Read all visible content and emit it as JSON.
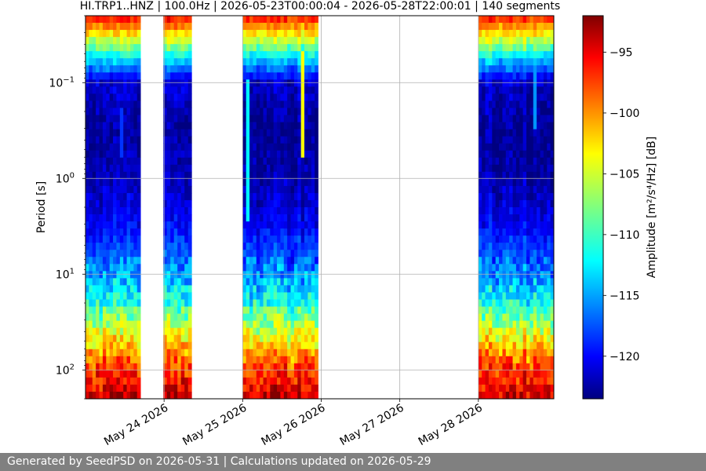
{
  "chart_data": {
    "type": "heatmap",
    "title": "HI.TRP1..HNZ | 100.0Hz | 2026-05-23T00:00:04 - 2026-05-28T22:00:01 | 140 segments",
    "ylabel": "Period [s]",
    "colorbar_label": "Amplitude [m²/s⁴/Hz] [dB]",
    "colorbar_ticks": [
      "−95",
      "−100",
      "−105",
      "−110",
      "−115",
      "−120"
    ],
    "colorbar_tick_values": [
      -95,
      -100,
      -105,
      -110,
      -115,
      -120
    ],
    "color_range": [
      -123.5,
      -92
    ],
    "colormap": "jet",
    "x_tick_labels": [
      "May 24 2026",
      "May 25 2026",
      "May 26 2026",
      "May 27 2026",
      "May 28 2026"
    ],
    "x_tick_days": [
      24,
      25,
      26,
      27,
      28
    ],
    "x_range_days": [
      23.0,
      28.96
    ],
    "y_scale": "log",
    "y_inverted": true,
    "y_range_seconds": [
      0.02,
      200
    ],
    "y_tick_labels": [
      {
        "base": "10",
        "exp": "−1",
        "value": 0.1
      },
      {
        "base": "10",
        "exp": "0",
        "value": 1
      },
      {
        "base": "10",
        "exp": "1",
        "value": 10
      },
      {
        "base": "10",
        "exp": "2",
        "value": 100
      }
    ],
    "grid": true,
    "data_segments_days": [
      [
        23.0,
        23.7
      ],
      [
        23.99,
        24.35
      ],
      [
        25.0,
        25.96
      ],
      [
        28.0,
        28.96
      ]
    ],
    "profile_period_s": [
      0.02,
      0.05,
      0.1,
      0.3,
      1,
      3,
      10,
      20,
      40,
      80,
      200
    ],
    "profile_amplitude_db": [
      -96,
      -111,
      -121,
      -123,
      -122,
      -120,
      -115,
      -111,
      -105,
      -99,
      -94
    ],
    "transient_events": [
      {
        "day": 25.05,
        "period_min_s": 0.1,
        "period_max_s": 3,
        "amplitude_db": -112
      },
      {
        "day": 25.75,
        "period_min_s": 0.05,
        "period_max_s": 0.6,
        "amplitude_db": -104
      },
      {
        "day": 28.7,
        "period_min_s": 0.05,
        "period_max_s": 0.3,
        "amplitude_db": -115
      },
      {
        "day": 23.45,
        "period_min_s": 0.2,
        "period_max_s": 0.6,
        "amplitude_db": -118
      }
    ]
  },
  "footer": {
    "text": "Generated by SeedPSD on 2026-05-31 | Calculations updated on 2026-05-29"
  }
}
